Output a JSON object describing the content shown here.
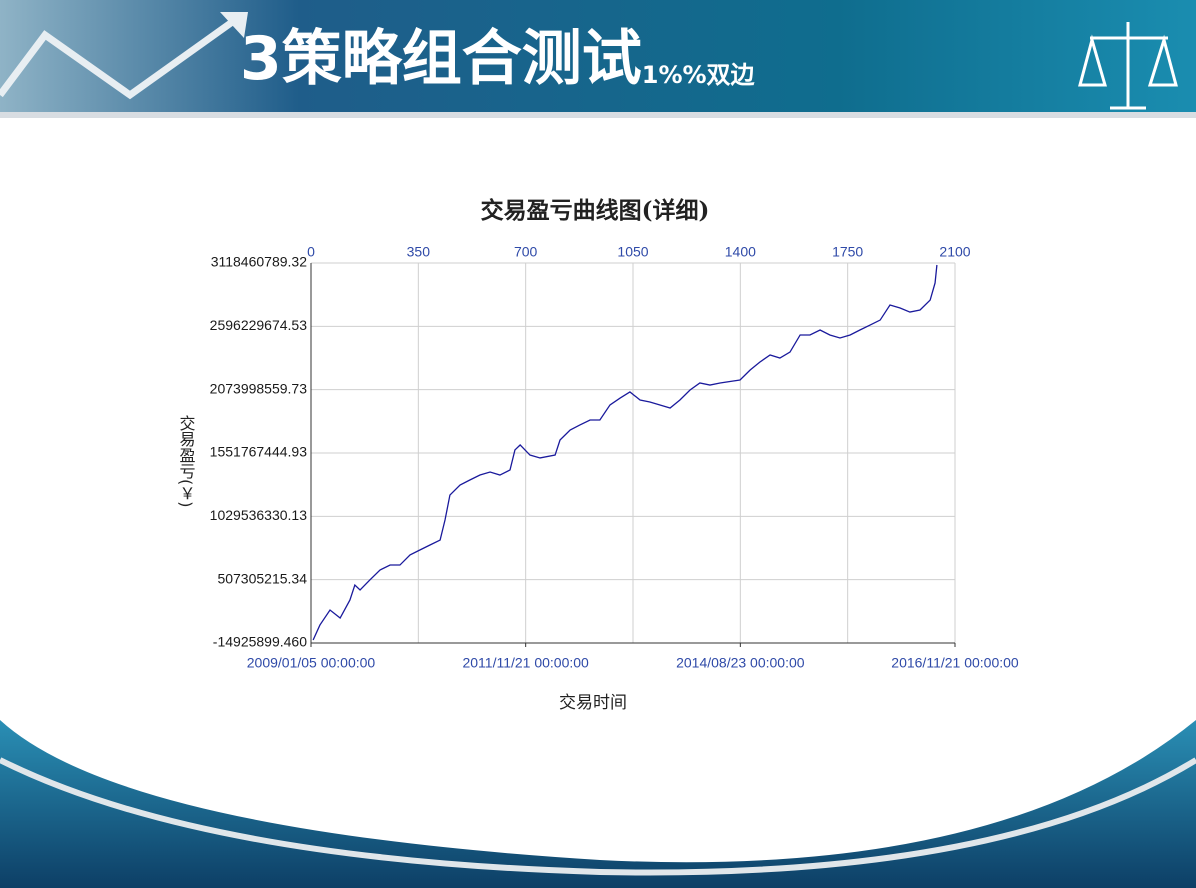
{
  "slide": {
    "number": "3",
    "title": "策略组合测试",
    "suffix": "1%%双边"
  },
  "chart_data": {
    "type": "line",
    "title": "交易盈亏曲线图(详细)",
    "xlabel": "交易时间",
    "ylabel": "交易盈亏(￥)",
    "xlim": [
      0,
      2100
    ],
    "xticks": [
      0,
      350,
      700,
      1050,
      1400,
      1750,
      2100
    ],
    "date_ticks": [
      {
        "value": 0,
        "label": "2009/01/05 00:00:00"
      },
      {
        "value": 700,
        "label": "2011/11/21 00:00:00"
      },
      {
        "value": 1400,
        "label": "2014/08/23 00:00:00"
      },
      {
        "value": 2100,
        "label": "2016/11/21 00:00:00"
      }
    ],
    "ylim": [
      -14925899.46,
      3118460789.32
    ],
    "yticks": [
      {
        "value": -14925899.46,
        "label": "-14925899.460"
      },
      507305215.34,
      1029536330.13,
      1551767444.93,
      2073998559.73,
      2596229674.53,
      3118460789.32
    ],
    "grid": true,
    "series": [
      {
        "color": "#1a1a9c",
        "x": [
          7,
          29,
          62,
          95,
          127,
          143,
          160,
          192,
          225,
          258,
          290,
          323,
          355,
          388,
          421,
          437,
          453,
          486,
          518,
          551,
          584,
          616,
          649,
          665,
          682,
          714,
          747,
          796,
          812,
          845,
          877,
          910,
          942,
          975,
          1008,
          1040,
          1073,
          1105,
          1138,
          1171,
          1203,
          1236,
          1268,
          1301,
          1334,
          1399,
          1432,
          1464,
          1497,
          1529,
          1562,
          1595,
          1627,
          1660,
          1692,
          1725,
          1758,
          1790,
          1823,
          1856,
          1888,
          1921,
          1953,
          1986,
          2019,
          2035,
          2041
        ],
        "values": [
          10000000,
          133000000,
          257000000,
          191000000,
          340000000,
          463000000,
          422000000,
          505000000,
          587000000,
          628000000,
          628000000,
          711000000,
          752000000,
          793000000,
          834000000,
          999000000,
          1205000000,
          1288000000,
          1329000000,
          1370000000,
          1395000000,
          1370000000,
          1412000000,
          1577000000,
          1618000000,
          1535000000,
          1511000000,
          1535000000,
          1659000000,
          1741000000,
          1783000000,
          1824000000,
          1824000000,
          1948000000,
          2005000000,
          2055000000,
          1989000000,
          1972000000,
          1948000000,
          1923000000,
          1989000000,
          2071000000,
          2129000000,
          2112000000,
          2129000000,
          2154000000,
          2236000000,
          2302000000,
          2360000000,
          2335000000,
          2384000000,
          2525000000,
          2525000000,
          2566000000,
          2525000000,
          2500000000,
          2525000000,
          2566000000,
          2607000000,
          2648000000,
          2772000000,
          2747000000,
          2714000000,
          2731000000,
          2813000000,
          2954000000,
          3102000000
        ]
      }
    ]
  }
}
